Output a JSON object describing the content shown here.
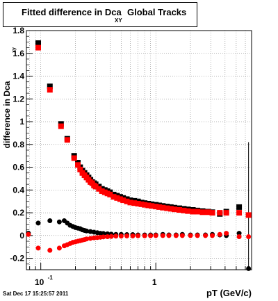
{
  "title": "Fitted difference in Dca",
  "title_subscript": "XY",
  "title_suffix": "Global Tracks",
  "timestamp": "Sat Dec 17 15:25:57 2011",
  "chart_data": {
    "type": "scatter",
    "title": "Fitted difference in Dca XY Global Tracks",
    "xlabel": "pT (GeV/c)",
    "ylabel": "difference in Dca",
    "ylabel_subscript": "xy",
    "xscale": "log",
    "xlim": [
      0.075,
      6.8
    ],
    "ylim": [
      -0.3,
      1.8
    ],
    "grid": true,
    "x_tick_labels": [
      {
        "x": 0.1,
        "label": "10",
        "exp": "-1"
      },
      {
        "x": 1,
        "label": "1"
      }
    ],
    "y_tick_labels": [
      "-0.2",
      "0",
      "0.2",
      "0.4",
      "0.6",
      "0.8",
      "1",
      "1.2",
      "1.4",
      "1.6",
      "1.8"
    ],
    "y_ticks": [
      -0.2,
      0,
      0.2,
      0.4,
      0.6,
      0.8,
      1.0,
      1.2,
      1.4,
      1.6,
      1.8
    ],
    "colors": {
      "black": "#000000",
      "red": "#ff0000"
    },
    "series": [
      {
        "color": "black",
        "marker": "square",
        "x": [
          0.095,
          0.12,
          0.15,
          0.17,
          0.195,
          0.21,
          0.22,
          0.23,
          0.24,
          0.25,
          0.26,
          0.27,
          0.28,
          0.29,
          0.3,
          0.32,
          0.34,
          0.36,
          0.38,
          0.4,
          0.43,
          0.46,
          0.49,
          0.52,
          0.56,
          0.6,
          0.65,
          0.7,
          0.75,
          0.8,
          0.86,
          0.92,
          1.0,
          1.07,
          1.15,
          1.25,
          1.35,
          1.45,
          1.6,
          1.75,
          1.9,
          2.1,
          2.3,
          2.55,
          2.85,
          3.1,
          3.6,
          4.1,
          5.3
        ],
        "y": [
          1.69,
          1.31,
          0.98,
          0.85,
          0.7,
          0.64,
          0.6,
          0.57,
          0.55,
          0.53,
          0.51,
          0.49,
          0.47,
          0.46,
          0.45,
          0.43,
          0.41,
          0.4,
          0.39,
          0.38,
          0.36,
          0.35,
          0.34,
          0.33,
          0.32,
          0.31,
          0.305,
          0.3,
          0.29,
          0.285,
          0.28,
          0.275,
          0.27,
          0.265,
          0.26,
          0.255,
          0.25,
          0.245,
          0.24,
          0.235,
          0.23,
          0.225,
          0.22,
          0.215,
          0.21,
          0.205,
          0.19,
          0.21,
          0.25
        ]
      },
      {
        "color": "red",
        "marker": "square",
        "x": [
          0.095,
          0.12,
          0.15,
          0.17,
          0.195,
          0.21,
          0.22,
          0.23,
          0.24,
          0.25,
          0.26,
          0.27,
          0.28,
          0.29,
          0.3,
          0.32,
          0.34,
          0.36,
          0.38,
          0.4,
          0.43,
          0.46,
          0.49,
          0.52,
          0.56,
          0.6,
          0.65,
          0.7,
          0.75,
          0.8,
          0.86,
          0.92,
          1.0,
          1.07,
          1.15,
          1.25,
          1.35,
          1.45,
          1.6,
          1.75,
          1.9,
          2.1,
          2.3,
          2.55,
          2.85,
          3.1,
          3.6,
          4.1,
          5.3,
          6.4
        ],
        "y": [
          1.65,
          1.28,
          0.96,
          0.84,
          0.68,
          0.62,
          0.58,
          0.55,
          0.53,
          0.51,
          0.49,
          0.47,
          0.46,
          0.44,
          0.43,
          0.41,
          0.39,
          0.38,
          0.37,
          0.36,
          0.34,
          0.33,
          0.32,
          0.31,
          0.3,
          0.29,
          0.285,
          0.28,
          0.275,
          0.27,
          0.265,
          0.26,
          0.255,
          0.25,
          0.245,
          0.24,
          0.235,
          0.23,
          0.225,
          0.22,
          0.215,
          0.21,
          0.21,
          0.205,
          0.205,
          0.2,
          0.2,
          0.2,
          0.2,
          0.18
        ]
      },
      {
        "color": "black",
        "marker": "circle",
        "x": [
          0.078,
          0.095,
          0.12,
          0.145,
          0.16,
          0.17,
          0.18,
          0.19,
          0.2,
          0.21,
          0.22,
          0.23,
          0.24,
          0.25,
          0.27,
          0.29,
          0.31,
          0.33,
          0.35,
          0.38,
          0.41,
          0.45,
          0.5,
          0.56,
          0.63,
          0.7,
          0.8,
          0.9,
          1.0,
          1.15,
          1.3,
          1.5,
          1.7,
          2.0,
          2.3,
          2.7,
          3.1,
          3.6,
          4.1,
          5.3,
          6.4
        ],
        "y": [
          0.02,
          0.11,
          0.13,
          0.12,
          0.13,
          0.11,
          0.09,
          0.08,
          0.07,
          0.065,
          0.06,
          0.05,
          0.045,
          0.04,
          0.035,
          0.03,
          0.025,
          0.02,
          0.018,
          0.015,
          0.012,
          0.01,
          0.01,
          0.008,
          0.008,
          0.005,
          0.005,
          0.005,
          0.005,
          0.01,
          0.005,
          0.005,
          0.01,
          0.005,
          0.005,
          0.005,
          0.01,
          0.005,
          0.0,
          0.02,
          -0.29
        ]
      },
      {
        "color": "red",
        "marker": "circle",
        "x": [
          0.078,
          0.095,
          0.12,
          0.145,
          0.16,
          0.17,
          0.18,
          0.19,
          0.2,
          0.21,
          0.22,
          0.23,
          0.24,
          0.25,
          0.27,
          0.29,
          0.31,
          0.33,
          0.35,
          0.38,
          0.41,
          0.45,
          0.5,
          0.56,
          0.63,
          0.7,
          0.8,
          0.9,
          1.0,
          1.15,
          1.3,
          1.5,
          1.7,
          2.0,
          2.3,
          2.7,
          3.1,
          3.6,
          4.1,
          5.3,
          6.4
        ],
        "y": [
          0.01,
          -0.11,
          -0.13,
          -0.11,
          -0.09,
          -0.08,
          -0.07,
          -0.06,
          -0.055,
          -0.05,
          -0.045,
          -0.04,
          -0.035,
          -0.03,
          -0.025,
          -0.02,
          -0.018,
          -0.015,
          -0.012,
          -0.01,
          -0.008,
          -0.005,
          -0.005,
          -0.003,
          -0.003,
          -0.002,
          -0.002,
          -0.002,
          0.0,
          0.0,
          0.0,
          0.0,
          0.0,
          0.0,
          0.0,
          0.0,
          0.0,
          0.01,
          0.02,
          -0.01,
          -0.01
        ]
      }
    ]
  }
}
